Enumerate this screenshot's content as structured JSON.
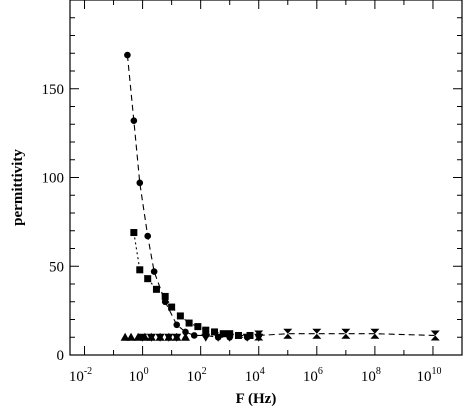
{
  "chart_data": {
    "type": "scatter",
    "title": "",
    "xlabel": "F (Hz)",
    "ylabel": "permittivity",
    "x_scale": "log10",
    "xlim_exponent": [
      -2.5,
      11
    ],
    "ylim": [
      0,
      200
    ],
    "x_ticks": [
      {
        "base": "10",
        "exp": "-2",
        "value_exp": -2
      },
      {
        "base": "10",
        "exp": "0",
        "value_exp": 0
      },
      {
        "base": "10",
        "exp": "2",
        "value_exp": 2
      },
      {
        "base": "10",
        "exp": "4",
        "value_exp": 4
      },
      {
        "base": "10",
        "exp": "6",
        "value_exp": 6
      },
      {
        "base": "10",
        "exp": "8",
        "value_exp": 8
      },
      {
        "base": "10",
        "exp": "10",
        "value_exp": 10
      }
    ],
    "y_ticks": [
      "0",
      "50",
      "100",
      "150"
    ],
    "grid": false,
    "series": [
      {
        "marker": "circle",
        "line": "dashed",
        "points": [
          {
            "x": 0.3,
            "y": 169
          },
          {
            "x": 0.5,
            "y": 132
          },
          {
            "x": 0.8,
            "y": 97
          },
          {
            "x": 1.5,
            "y": 67
          },
          {
            "x": 2.5,
            "y": 47
          },
          {
            "x": 6,
            "y": 30
          },
          {
            "x": 15,
            "y": 17
          },
          {
            "x": 30,
            "y": 13
          },
          {
            "x": 60,
            "y": 11
          },
          {
            "x": 150,
            "y": 11
          },
          {
            "x": 400,
            "y": 10
          },
          {
            "x": 1000,
            "y": 10
          },
          {
            "x": 4000,
            "y": 10
          },
          {
            "x": 10000,
            "y": 11
          }
        ]
      },
      {
        "marker": "square",
        "line": "dotted",
        "points": [
          {
            "x": 0.5,
            "y": 69
          },
          {
            "x": 0.8,
            "y": 48
          },
          {
            "x": 1.5,
            "y": 43
          },
          {
            "x": 3,
            "y": 37
          },
          {
            "x": 6,
            "y": 33
          },
          {
            "x": 10,
            "y": 27
          },
          {
            "x": 20,
            "y": 22
          },
          {
            "x": 40,
            "y": 18
          },
          {
            "x": 80,
            "y": 16
          },
          {
            "x": 150,
            "y": 14
          },
          {
            "x": 300,
            "y": 13
          },
          {
            "x": 600,
            "y": 12
          },
          {
            "x": 1000,
            "y": 12
          },
          {
            "x": 2000,
            "y": 11
          },
          {
            "x": 5000,
            "y": 11
          }
        ]
      },
      {
        "marker": "triangle-up",
        "line": "none",
        "points": [
          {
            "x": 0.25,
            "y": 10
          },
          {
            "x": 0.4,
            "y": 10
          },
          {
            "x": 0.7,
            "y": 10
          },
          {
            "x": 1.2,
            "y": 10
          },
          {
            "x": 2,
            "y": 10
          },
          {
            "x": 4,
            "y": 10
          },
          {
            "x": 8,
            "y": 10
          },
          {
            "x": 15,
            "y": 10
          },
          {
            "x": 30,
            "y": 10
          }
        ]
      },
      {
        "marker": "triangle-down",
        "line": "none",
        "points": [
          {
            "x": 1,
            "y": 10
          },
          {
            "x": 2,
            "y": 10
          },
          {
            "x": 4,
            "y": 10
          },
          {
            "x": 8,
            "y": 10
          },
          {
            "x": 15,
            "y": 10
          },
          {
            "x": 150,
            "y": 10
          },
          {
            "x": 400,
            "y": 10
          },
          {
            "x": 1000,
            "y": 10
          },
          {
            "x": 4000,
            "y": 10
          },
          {
            "x": 10000,
            "y": 10
          }
        ]
      },
      {
        "marker": "hourglass",
        "line": "dashed",
        "points": [
          {
            "x": 10000,
            "y": 11
          },
          {
            "x": 100000,
            "y": 12
          },
          {
            "x": 1000000,
            "y": 12
          },
          {
            "x": 10000000,
            "y": 12
          },
          {
            "x": 100000000,
            "y": 12
          },
          {
            "x": 12000000000,
            "y": 11
          }
        ]
      }
    ]
  }
}
